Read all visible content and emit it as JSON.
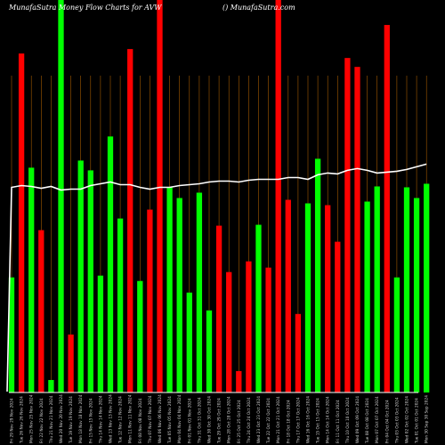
{
  "header": {
    "left_title": "MunafaSutra  Money Flow  Charts for AVW",
    "right_title": "() MunafaSutra.com"
  },
  "colors": {
    "background": "#000000",
    "up": "#00ff00",
    "down": "#ff0000",
    "grid": "#a35a00",
    "line": "#ffffff",
    "baseline": "#ffffff"
  },
  "chart_data": {
    "type": "bar",
    "categories": [
      "Fri 29 Nov",
      "Tue 26 Nov",
      "Mon 25 Nov",
      "Fri 22 Nov",
      "Thu 21 Nov",
      "Wed 20 Nov",
      "Tue 19 Nov",
      "Mon 18 Nov",
      "Fri 15 Nov",
      "Thu 14 Nov",
      "Wed 13 Nov",
      "Tue 12 Nov",
      "Mon 11 Nov",
      "Fri 08 Nov",
      "Thu 07 Nov",
      "Wed 06 Nov",
      "Tue 05 Nov",
      "Mon 04 Nov",
      "Fri 01 Nov",
      "Thu 31 Oct",
      "Wed 30 Oct",
      "Tue 29 Oct",
      "Mon 28 Oct",
      "Fri 25 Oct",
      "Thu 24 Oct",
      "Wed 23 Oct",
      "Tue 22 Oct",
      "Mon 21 Oct",
      "Fri 18 Oct",
      "Thu 17 Oct",
      "Wed 16 Oct",
      "Tue 15 Oct",
      "Mon 14 Oct",
      "Fri 11 Oct",
      "Thu 10 Oct",
      "Wed 09 Oct",
      "Tue 08 Oct",
      "Mon 07 Oct",
      "Fri 04 Oct",
      "Thu 03 Oct",
      "Wed 02 Oct",
      "Tue 01 Oct",
      "Mon 30 Sep"
    ],
    "tick_labels": [
      "29 Nov 2024",
      "26 Nov 2024",
      "25 Nov 2024",
      "22 Nov 2024",
      "21 Nov 2024",
      "20 Nov 2024",
      "19 Nov 2024",
      "18 Nov 2024",
      "15 Nov 2024",
      "14 Nov 2024",
      "13 Nov 2024",
      "12 Nov 2024",
      "11 Nov 2024",
      "08 Nov 2024",
      "07 Nov 2024",
      "06 Nov 2024",
      "05 Nov 2024",
      "04 Nov 2024",
      "01 Nov 2024",
      "31 Oct 2024",
      "30 Oct 2024",
      "29 Oct 2024",
      "28 Oct 2024",
      "25 Oct 2024",
      "24 Oct 2024",
      "23 Oct 2024",
      "22 Oct 2024",
      "21 Oct 2024",
      "18 Oct 2024",
      "17 Oct 2024",
      "16 Oct 2024",
      "15 Oct 2024",
      "14 Oct 2024",
      "11 Oct 2024",
      "10 Oct 2024",
      "09 Oct 2024",
      "08 Oct 2024",
      "07 Oct 2024",
      "04 Oct 2024",
      "03 Oct 2024",
      "02 Oct 2024",
      "01 Oct 2024",
      "30 Sep 2024"
    ],
    "values": [
      129,
      380,
      252,
      182,
      14,
      440,
      65,
      260,
      249,
      131,
      287,
      195,
      385,
      125,
      205,
      440,
      230,
      218,
      112,
      224,
      92,
      187,
      135,
      24,
      147,
      188,
      140,
      440,
      216,
      88,
      212,
      262,
      210,
      169,
      375,
      365,
      214,
      231,
      412,
      129,
      230,
      218,
      234
    ],
    "directions": [
      "up",
      "down",
      "up",
      "down",
      "up",
      "up",
      "down",
      "up",
      "up",
      "up",
      "up",
      "up",
      "down",
      "up",
      "down",
      "down",
      "up",
      "up",
      "up",
      "up",
      "up",
      "down",
      "down",
      "down",
      "down",
      "up",
      "down",
      "down",
      "down",
      "down",
      "up",
      "up",
      "down",
      "down",
      "down",
      "down",
      "up",
      "up",
      "down",
      "up",
      "up",
      "up",
      "up"
    ],
    "line": [
      230,
      232,
      231,
      229,
      231,
      227,
      228,
      228,
      232,
      234,
      236,
      233,
      233,
      230,
      228,
      230,
      230,
      232,
      233,
      234,
      236,
      237,
      237,
      236,
      238,
      239,
      239,
      239,
      241,
      241,
      239,
      244,
      246,
      245,
      249,
      251,
      249,
      246,
      247,
      248,
      250,
      253,
      256
    ],
    "ylim": [
      0,
      440
    ],
    "grid": true
  }
}
